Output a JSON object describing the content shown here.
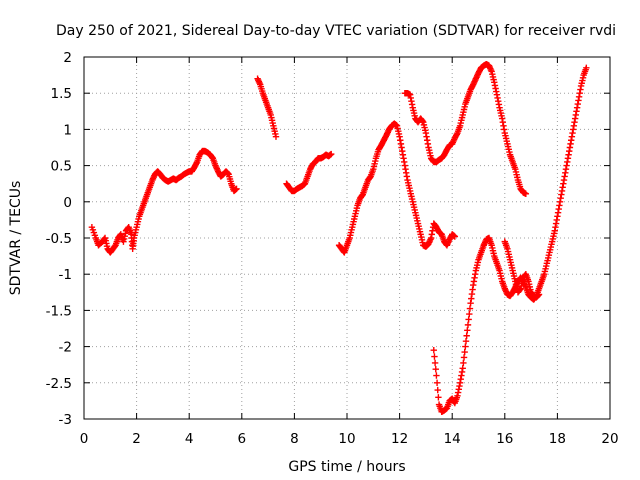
{
  "chart_data": {
    "type": "scatter",
    "title": "Day 250 of 2021, Sidereal Day-to-day VTEC variation (SDTVAR) for receiver rvdi",
    "xlabel": "GPS time / hours",
    "ylabel": "SDTVAR / TECUs",
    "xlim": [
      0,
      20
    ],
    "ylim": [
      -3,
      2
    ],
    "x_ticks": [
      "0",
      "2",
      "4",
      "6",
      "8",
      "10",
      "12",
      "14",
      "16",
      "18",
      "20"
    ],
    "y_ticks": [
      "2",
      "1.5",
      "1",
      "0.5",
      "0",
      "-0.5",
      "-1",
      "-1.5",
      "-2",
      "-2.5",
      "-3"
    ],
    "grid": true,
    "marker": "+",
    "colors": {
      "series": "#ff0000",
      "grid": "#a0a0a0",
      "frame": "#000000"
    },
    "series": [
      {
        "segments": [
          [
            [
              0.3,
              -0.35
            ],
            [
              0.45,
              -0.5
            ],
            [
              0.55,
              -0.6
            ],
            [
              0.7,
              -0.55
            ],
            [
              0.8,
              -0.5
            ],
            [
              0.9,
              -0.65
            ],
            [
              1.0,
              -0.7
            ],
            [
              1.1,
              -0.65
            ],
            [
              1.2,
              -0.6
            ],
            [
              1.3,
              -0.5
            ],
            [
              1.4,
              -0.45
            ],
            [
              1.5,
              -0.55
            ],
            [
              1.6,
              -0.4
            ],
            [
              1.7,
              -0.35
            ],
            [
              1.8,
              -0.45
            ],
            [
              1.85,
              -0.65
            ],
            [
              1.9,
              -0.5
            ],
            [
              2.0,
              -0.35
            ],
            [
              2.1,
              -0.2
            ],
            [
              2.2,
              -0.1
            ],
            [
              2.3,
              0.0
            ],
            [
              2.4,
              0.1
            ],
            [
              2.5,
              0.2
            ],
            [
              2.6,
              0.3
            ],
            [
              2.7,
              0.38
            ],
            [
              2.8,
              0.42
            ],
            [
              2.9,
              0.38
            ],
            [
              3.0,
              0.33
            ],
            [
              3.1,
              0.3
            ],
            [
              3.2,
              0.28
            ],
            [
              3.3,
              0.3
            ],
            [
              3.4,
              0.32
            ],
            [
              3.5,
              0.3
            ],
            [
              3.6,
              0.33
            ],
            [
              3.7,
              0.35
            ],
            [
              3.8,
              0.38
            ],
            [
              3.9,
              0.4
            ],
            [
              4.0,
              0.42
            ],
            [
              4.1,
              0.42
            ],
            [
              4.2,
              0.48
            ],
            [
              4.3,
              0.55
            ],
            [
              4.4,
              0.65
            ],
            [
              4.5,
              0.7
            ],
            [
              4.6,
              0.7
            ],
            [
              4.7,
              0.68
            ],
            [
              4.8,
              0.65
            ],
            [
              4.9,
              0.6
            ],
            [
              5.0,
              0.5
            ],
            [
              5.1,
              0.42
            ],
            [
              5.2,
              0.35
            ],
            [
              5.3,
              0.38
            ],
            [
              5.4,
              0.42
            ],
            [
              5.5,
              0.38
            ],
            [
              5.6,
              0.25
            ],
            [
              5.7,
              0.15
            ],
            [
              5.8,
              0.18
            ]
          ],
          [
            [
              6.6,
              1.7
            ],
            [
              6.7,
              1.62
            ],
            [
              6.8,
              1.5
            ],
            [
              6.9,
              1.4
            ],
            [
              7.0,
              1.3
            ],
            [
              7.1,
              1.2
            ],
            [
              7.2,
              1.05
            ],
            [
              7.3,
              0.9
            ]
          ],
          [
            [
              7.7,
              0.25
            ],
            [
              7.8,
              0.2
            ],
            [
              7.9,
              0.15
            ],
            [
              8.0,
              0.15
            ],
            [
              8.1,
              0.18
            ],
            [
              8.2,
              0.2
            ],
            [
              8.3,
              0.22
            ],
            [
              8.4,
              0.25
            ],
            [
              8.5,
              0.35
            ],
            [
              8.6,
              0.45
            ],
            [
              8.7,
              0.52
            ],
            [
              8.8,
              0.55
            ],
            [
              8.9,
              0.6
            ],
            [
              9.0,
              0.6
            ],
            [
              9.1,
              0.62
            ],
            [
              9.2,
              0.65
            ],
            [
              9.3,
              0.63
            ],
            [
              9.4,
              0.66
            ]
          ],
          [
            [
              9.7,
              -0.6
            ],
            [
              9.8,
              -0.65
            ],
            [
              9.9,
              -0.7
            ],
            [
              10.0,
              -0.6
            ],
            [
              10.1,
              -0.5
            ],
            [
              10.2,
              -0.35
            ],
            [
              10.3,
              -0.2
            ],
            [
              10.4,
              -0.05
            ],
            [
              10.5,
              0.05
            ],
            [
              10.6,
              0.1
            ],
            [
              10.7,
              0.2
            ],
            [
              10.8,
              0.3
            ],
            [
              10.9,
              0.35
            ],
            [
              11.0,
              0.45
            ],
            [
              11.1,
              0.6
            ],
            [
              11.2,
              0.72
            ],
            [
              11.3,
              0.78
            ],
            [
              11.4,
              0.85
            ],
            [
              11.5,
              0.92
            ],
            [
              11.6,
              1.0
            ],
            [
              11.7,
              1.05
            ],
            [
              11.8,
              1.08
            ],
            [
              11.9,
              1.05
            ],
            [
              12.0,
              0.9
            ],
            [
              12.1,
              0.7
            ],
            [
              12.2,
              0.5
            ],
            [
              12.3,
              0.3
            ],
            [
              12.4,
              0.15
            ],
            [
              12.5,
              0.0
            ],
            [
              12.6,
              -0.15
            ],
            [
              12.7,
              -0.3
            ],
            [
              12.8,
              -0.45
            ],
            [
              12.9,
              -0.6
            ],
            [
              13.0,
              -0.62
            ],
            [
              13.1,
              -0.58
            ],
            [
              13.2,
              -0.5
            ],
            [
              13.3,
              -0.3
            ],
            [
              13.4,
              -0.35
            ],
            [
              13.5,
              -0.42
            ],
            [
              13.6,
              -0.45
            ],
            [
              13.7,
              -0.55
            ],
            [
              13.8,
              -0.6
            ],
            [
              13.9,
              -0.52
            ],
            [
              14.0,
              -0.45
            ],
            [
              14.1,
              -0.48
            ]
          ],
          [
            [
              12.2,
              1.5
            ],
            [
              12.3,
              1.5
            ],
            [
              12.4,
              1.48
            ],
            [
              12.5,
              1.3
            ],
            [
              12.6,
              1.15
            ],
            [
              12.7,
              1.1
            ],
            [
              12.8,
              1.15
            ],
            [
              12.9,
              1.1
            ],
            [
              13.0,
              0.95
            ],
            [
              13.1,
              0.75
            ],
            [
              13.2,
              0.6
            ],
            [
              13.3,
              0.55
            ],
            [
              13.4,
              0.55
            ],
            [
              13.5,
              0.58
            ],
            [
              13.6,
              0.6
            ],
            [
              13.7,
              0.65
            ],
            [
              13.8,
              0.72
            ],
            [
              13.9,
              0.78
            ],
            [
              14.0,
              0.8
            ],
            [
              14.1,
              0.88
            ],
            [
              14.2,
              0.95
            ],
            [
              14.3,
              1.05
            ],
            [
              14.4,
              1.2
            ],
            [
              14.5,
              1.35
            ],
            [
              14.6,
              1.45
            ],
            [
              14.7,
              1.55
            ],
            [
              14.8,
              1.62
            ],
            [
              14.9,
              1.7
            ],
            [
              15.0,
              1.78
            ],
            [
              15.1,
              1.85
            ],
            [
              15.2,
              1.88
            ],
            [
              15.3,
              1.9
            ],
            [
              15.4,
              1.88
            ],
            [
              15.5,
              1.8
            ],
            [
              15.6,
              1.65
            ],
            [
              15.7,
              1.48
            ],
            [
              15.8,
              1.3
            ],
            [
              15.9,
              1.15
            ],
            [
              16.0,
              0.95
            ],
            [
              16.1,
              0.8
            ],
            [
              16.2,
              0.65
            ],
            [
              16.3,
              0.55
            ],
            [
              16.4,
              0.45
            ],
            [
              16.5,
              0.3
            ],
            [
              16.6,
              0.18
            ],
            [
              16.7,
              0.13
            ],
            [
              16.8,
              0.11
            ]
          ],
          [
            [
              13.3,
              -2.05
            ],
            [
              13.4,
              -2.4
            ],
            [
              13.5,
              -2.8
            ],
            [
              13.6,
              -2.9
            ],
            [
              13.7,
              -2.88
            ],
            [
              13.8,
              -2.85
            ],
            [
              13.9,
              -2.75
            ],
            [
              14.0,
              -2.72
            ],
            [
              14.1,
              -2.78
            ],
            [
              14.2,
              -2.68
            ],
            [
              14.3,
              -2.5
            ],
            [
              14.4,
              -2.3
            ],
            [
              14.5,
              -2.0
            ],
            [
              14.6,
              -1.7
            ],
            [
              14.7,
              -1.4
            ],
            [
              14.8,
              -1.15
            ],
            [
              14.9,
              -0.95
            ],
            [
              15.0,
              -0.8
            ],
            [
              15.1,
              -0.7
            ],
            [
              15.2,
              -0.6
            ],
            [
              15.3,
              -0.52
            ],
            [
              15.4,
              -0.5
            ],
            [
              15.5,
              -0.6
            ],
            [
              15.6,
              -0.75
            ],
            [
              15.7,
              -0.85
            ],
            [
              15.8,
              -0.95
            ],
            [
              15.9,
              -1.1
            ],
            [
              16.0,
              -1.2
            ],
            [
              16.1,
              -1.28
            ],
            [
              16.2,
              -1.3
            ],
            [
              16.3,
              -1.25
            ],
            [
              16.4,
              -1.18
            ],
            [
              16.5,
              -1.1
            ],
            [
              16.6,
              -1.05
            ],
            [
              16.7,
              -1.1
            ],
            [
              16.8,
              -1.18
            ],
            [
              16.9,
              -1.28
            ],
            [
              17.0,
              -1.32
            ],
            [
              17.1,
              -1.35
            ],
            [
              17.2,
              -1.3
            ],
            [
              17.3,
              -1.2
            ],
            [
              17.4,
              -1.1
            ],
            [
              17.5,
              -1.0
            ],
            [
              17.6,
              -0.85
            ],
            [
              17.7,
              -0.7
            ],
            [
              17.8,
              -0.55
            ],
            [
              17.9,
              -0.4
            ],
            [
              18.0,
              -0.2
            ],
            [
              18.1,
              0.0
            ],
            [
              18.2,
              0.2
            ],
            [
              18.3,
              0.4
            ],
            [
              18.4,
              0.6
            ],
            [
              18.5,
              0.8
            ],
            [
              18.6,
              1.0
            ],
            [
              18.7,
              1.2
            ],
            [
              18.8,
              1.4
            ],
            [
              18.9,
              1.6
            ],
            [
              19.0,
              1.75
            ],
            [
              19.1,
              1.85
            ]
          ],
          [
            [
              16.0,
              -0.55
            ],
            [
              16.1,
              -0.65
            ],
            [
              16.2,
              -0.8
            ],
            [
              16.3,
              -0.95
            ],
            [
              16.4,
              -1.1
            ],
            [
              16.5,
              -1.25
            ],
            [
              16.6,
              -1.2
            ],
            [
              16.7,
              -1.05
            ],
            [
              16.8,
              -1.0
            ],
            [
              16.9,
              -1.1
            ],
            [
              17.0,
              -1.25
            ],
            [
              17.1,
              -1.3
            ],
            [
              17.2,
              -1.32
            ],
            [
              17.3,
              -1.28
            ]
          ]
        ]
      }
    ]
  }
}
